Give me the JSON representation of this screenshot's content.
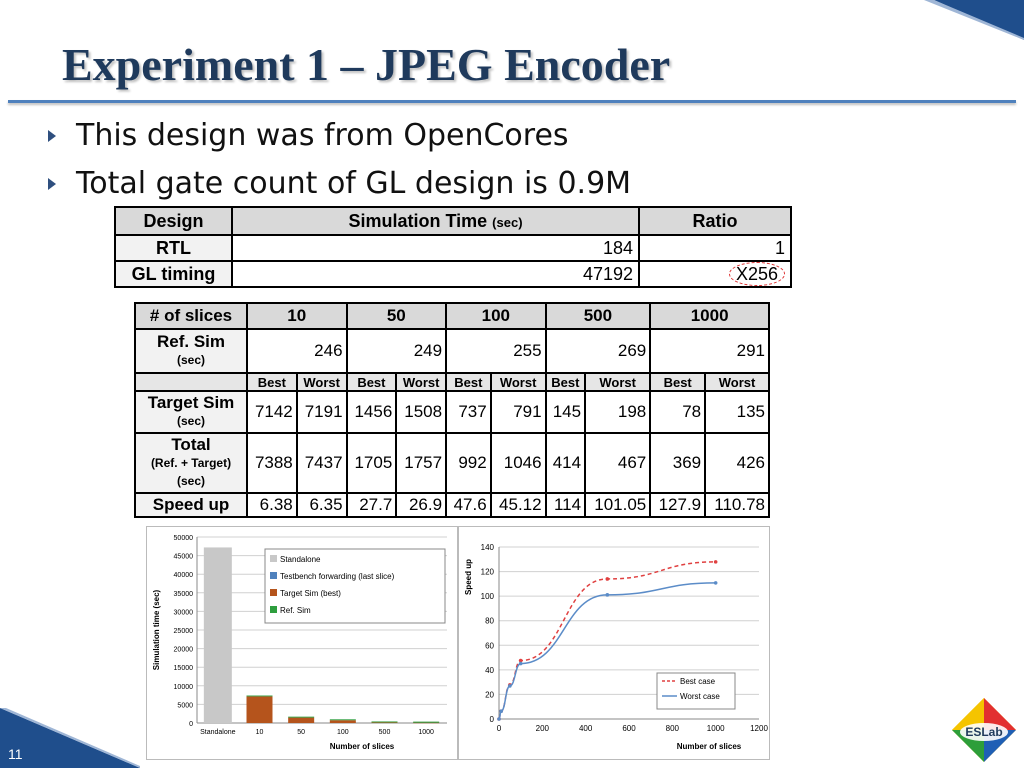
{
  "title": "Experiment 1 – JPEG Encoder",
  "bullets": [
    "This design was from OpenCores",
    "Total gate count of GL design is 0.9M"
  ],
  "table1": {
    "headers": {
      "design": "Design",
      "sim": "Simulation Time",
      "sim_unit": "(sec)",
      "ratio": "Ratio"
    },
    "rows": [
      {
        "design": "RTL",
        "sim": "184",
        "ratio": "1"
      },
      {
        "design": "GL timing",
        "sim": "47192",
        "ratio": "X256"
      }
    ]
  },
  "table2": {
    "header_label": "# of slices",
    "slices": [
      "10",
      "50",
      "100",
      "500",
      "1000"
    ],
    "ref_label": "Ref. Sim",
    "ref_unit": "(sec)",
    "ref_values": [
      "246",
      "249",
      "255",
      "269",
      "291"
    ],
    "best_label": "Best",
    "worst_label": "Worst",
    "target_label": "Target Sim",
    "target_unit": "(sec)",
    "target_values": [
      "7142",
      "7191",
      "1456",
      "1508",
      "737",
      "791",
      "145",
      "198",
      "78",
      "135"
    ],
    "total_label": "Total",
    "total_sub": "(Ref. + Target)",
    "total_unit": "(sec)",
    "total_values": [
      "7388",
      "7437",
      "1705",
      "1757",
      "992",
      "1046",
      "414",
      "467",
      "369",
      "426"
    ],
    "speedup_label": "Speed up",
    "speedup_values": [
      "6.38",
      "6.35",
      "27.7",
      "26.9",
      "47.6",
      "45.12",
      "114",
      "101.05",
      "127.9",
      "110.78"
    ]
  },
  "chart_data": [
    {
      "type": "bar",
      "categories": [
        "Standalone",
        "10",
        "50",
        "100",
        "500",
        "1000"
      ],
      "series": [
        {
          "name": "Standalone",
          "values": [
            47192,
            0,
            0,
            0,
            0,
            0
          ],
          "color": "#c8c8c8"
        },
        {
          "name": "Testbench forwarding (last slice)",
          "values": [
            0,
            0,
            0,
            0,
            0,
            0
          ],
          "color": "#4f81bd"
        },
        {
          "name": "Target Sim (best)",
          "values": [
            0,
            7142,
            1456,
            737,
            145,
            78
          ],
          "color": "#b5541c"
        },
        {
          "name": "Ref. Sim",
          "values": [
            0,
            246,
            249,
            255,
            269,
            291
          ],
          "color": "#2e9e3e"
        }
      ],
      "xlabel": "Number of slices",
      "ylabel": "Simulation time (sec)",
      "ylim": [
        0,
        50000
      ],
      "yticks": [
        "0",
        "5000",
        "10000",
        "15000",
        "20000",
        "25000",
        "30000",
        "35000",
        "40000",
        "45000",
        "50000"
      ],
      "legend": "top-right",
      "grid": true
    },
    {
      "type": "line",
      "series": [
        {
          "name": "Best case",
          "x": [
            0,
            10,
            50,
            100,
            500,
            1000
          ],
          "y": [
            0,
            6.38,
            27.7,
            47.6,
            114,
            127.9
          ],
          "color": "#e04040",
          "dash": true
        },
        {
          "name": "Worst case",
          "x": [
            0,
            10,
            50,
            100,
            500,
            1000
          ],
          "y": [
            0,
            6.35,
            26.9,
            45.12,
            101.05,
            110.78
          ],
          "color": "#5b8cc8",
          "dash": false
        }
      ],
      "xlabel": "Number of slices",
      "ylabel": "Speed up",
      "xlim": [
        0,
        1200
      ],
      "ylim": [
        0,
        140
      ],
      "xticks": [
        "0",
        "200",
        "400",
        "600",
        "800",
        "1000",
        "1200"
      ],
      "yticks": [
        "0",
        "20",
        "40",
        "60",
        "80",
        "100",
        "120",
        "140"
      ],
      "legend": "bottom-right",
      "grid": true
    }
  ],
  "slide_number": "11",
  "logo_text": "ESLab",
  "colors": {
    "title": "#1f3a5c",
    "accent": "#4f81bd",
    "corner": "#1f4e8c"
  }
}
